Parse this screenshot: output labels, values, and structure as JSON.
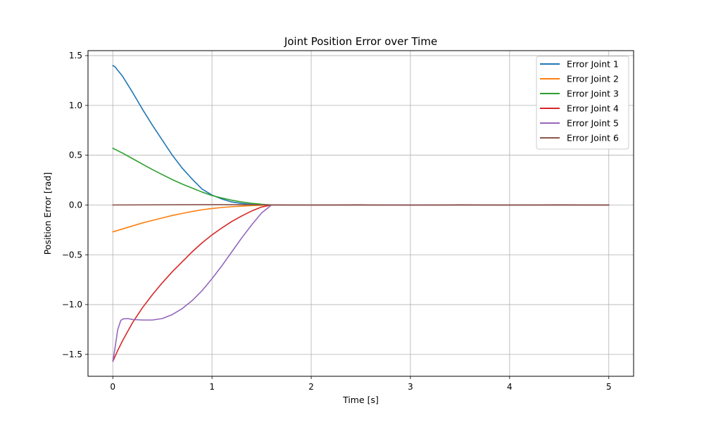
{
  "chart_data": {
    "type": "line",
    "title": "Joint Position Error over Time",
    "xlabel": "Time [s]",
    "ylabel": "Position Error [rad]",
    "xlim": [
      -0.25,
      5.25
    ],
    "ylim": [
      -1.72,
      1.55
    ],
    "xticks": [
      0,
      1,
      2,
      3,
      4,
      5
    ],
    "xtick_labels": [
      "0",
      "1",
      "2",
      "3",
      "4",
      "5"
    ],
    "yticks": [
      -1.5,
      -1.0,
      -0.5,
      0.0,
      0.5,
      1.0,
      1.5
    ],
    "ytick_labels": [
      "−1.5",
      "−1.0",
      "−0.5",
      "0.0",
      "0.5",
      "1.0",
      "1.5"
    ],
    "grid": true,
    "legend_position": "top-right",
    "series": [
      {
        "name": "Error Joint 1",
        "color": "#1f77b4",
        "x": [
          0,
          0.02,
          0.1,
          0.2,
          0.3,
          0.4,
          0.5,
          0.6,
          0.7,
          0.8,
          0.9,
          1.0,
          1.1,
          1.2,
          1.3,
          1.4,
          1.5,
          1.6,
          2,
          3,
          4,
          5
        ],
        "y": [
          1.4,
          1.39,
          1.29,
          1.13,
          0.96,
          0.8,
          0.65,
          0.5,
          0.37,
          0.26,
          0.16,
          0.1,
          0.06,
          0.03,
          0.015,
          0.006,
          0.002,
          0.0,
          0.0,
          0.0,
          0.0,
          0.0
        ]
      },
      {
        "name": "Error Joint 2",
        "color": "#ff7f0e",
        "x": [
          0,
          0.1,
          0.2,
          0.3,
          0.4,
          0.5,
          0.6,
          0.7,
          0.8,
          0.9,
          1.0,
          1.1,
          1.2,
          1.3,
          1.4,
          1.5,
          1.6,
          2,
          3,
          4,
          5
        ],
        "y": [
          -0.27,
          -0.24,
          -0.21,
          -0.18,
          -0.155,
          -0.13,
          -0.105,
          -0.085,
          -0.065,
          -0.048,
          -0.035,
          -0.025,
          -0.017,
          -0.011,
          -0.006,
          -0.003,
          0.0,
          0.0,
          0.0,
          0.0,
          0.0
        ]
      },
      {
        "name": "Error Joint 3",
        "color": "#2ca02c",
        "x": [
          0,
          0.1,
          0.2,
          0.3,
          0.4,
          0.5,
          0.6,
          0.7,
          0.8,
          0.9,
          1.0,
          1.1,
          1.2,
          1.3,
          1.4,
          1.5,
          1.6,
          2,
          3,
          4,
          5
        ],
        "y": [
          0.57,
          0.52,
          0.465,
          0.41,
          0.355,
          0.305,
          0.255,
          0.21,
          0.17,
          0.13,
          0.095,
          0.07,
          0.048,
          0.03,
          0.017,
          0.007,
          0.0,
          0.0,
          0.0,
          0.0,
          0.0
        ]
      },
      {
        "name": "Error Joint 4",
        "color": "#d62728",
        "x": [
          0,
          0.05,
          0.1,
          0.2,
          0.3,
          0.4,
          0.5,
          0.6,
          0.7,
          0.8,
          0.9,
          1.0,
          1.1,
          1.2,
          1.3,
          1.4,
          1.5,
          1.6,
          2,
          3,
          4,
          5
        ],
        "y": [
          -1.57,
          -1.46,
          -1.36,
          -1.18,
          -1.03,
          -0.9,
          -0.78,
          -0.67,
          -0.57,
          -0.47,
          -0.38,
          -0.3,
          -0.23,
          -0.165,
          -0.11,
          -0.06,
          -0.02,
          0.0,
          0.0,
          0.0,
          0.0,
          0.0
        ]
      },
      {
        "name": "Error Joint 5",
        "color": "#9467bd",
        "x": [
          0,
          0.02,
          0.05,
          0.08,
          0.1,
          0.15,
          0.2,
          0.3,
          0.4,
          0.5,
          0.6,
          0.7,
          0.8,
          0.9,
          1.0,
          1.1,
          1.2,
          1.3,
          1.4,
          1.5,
          1.6,
          2,
          3,
          4,
          5
        ],
        "y": [
          -1.57,
          -1.45,
          -1.25,
          -1.16,
          -1.145,
          -1.14,
          -1.15,
          -1.155,
          -1.155,
          -1.14,
          -1.1,
          -1.04,
          -0.96,
          -0.86,
          -0.74,
          -0.61,
          -0.47,
          -0.33,
          -0.2,
          -0.08,
          0.0,
          0.0,
          0.0,
          0.0,
          0.0
        ]
      },
      {
        "name": "Error Joint 6",
        "color": "#8c564b",
        "x": [
          0,
          0.5,
          1.0,
          1.5,
          2,
          2.5,
          3,
          3.5,
          4,
          4.5,
          5
        ],
        "y": [
          0.0,
          0.002,
          0.004,
          0.002,
          0.0,
          0.002,
          -0.002,
          0.002,
          0.0,
          0.002,
          0.0
        ]
      }
    ]
  }
}
